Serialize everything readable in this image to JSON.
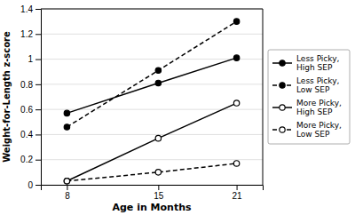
{
  "chart_data": {
    "type": "line",
    "x": [
      8,
      15,
      21
    ],
    "series": [
      {
        "name": "Less Picky,\nHigh SEP",
        "color": "#000000",
        "line_style": "solid",
        "marker": "filled-circle",
        "values": [
          0.57,
          0.81,
          1.01
        ]
      },
      {
        "name": "Less Picky,\nLow SEP",
        "color": "#000000",
        "line_style": "dashed",
        "marker": "filled-circle",
        "values": [
          0.46,
          0.91,
          1.3
        ]
      },
      {
        "name": "More Picky,\nHigh SEP",
        "color": "#000000",
        "line_style": "solid",
        "marker": "open-circle",
        "values": [
          0.03,
          0.37,
          0.65
        ]
      },
      {
        "name": "More Picky,\nLow SEP",
        "color": "#000000",
        "line_style": "dashed",
        "marker": "open-circle",
        "values": [
          0.03,
          0.1,
          0.17
        ]
      }
    ],
    "xlabel": "Age in Months",
    "ylabel": "Weight-for-Length z-score",
    "xlim": [
      6,
      23
    ],
    "xticks": [
      8,
      15,
      21
    ],
    "ylim": [
      0,
      1.4
    ],
    "yticks": [
      0,
      0.2,
      0.4,
      0.6,
      0.8,
      1,
      1.2,
      1.4
    ],
    "grid": true,
    "legend": "right"
  }
}
